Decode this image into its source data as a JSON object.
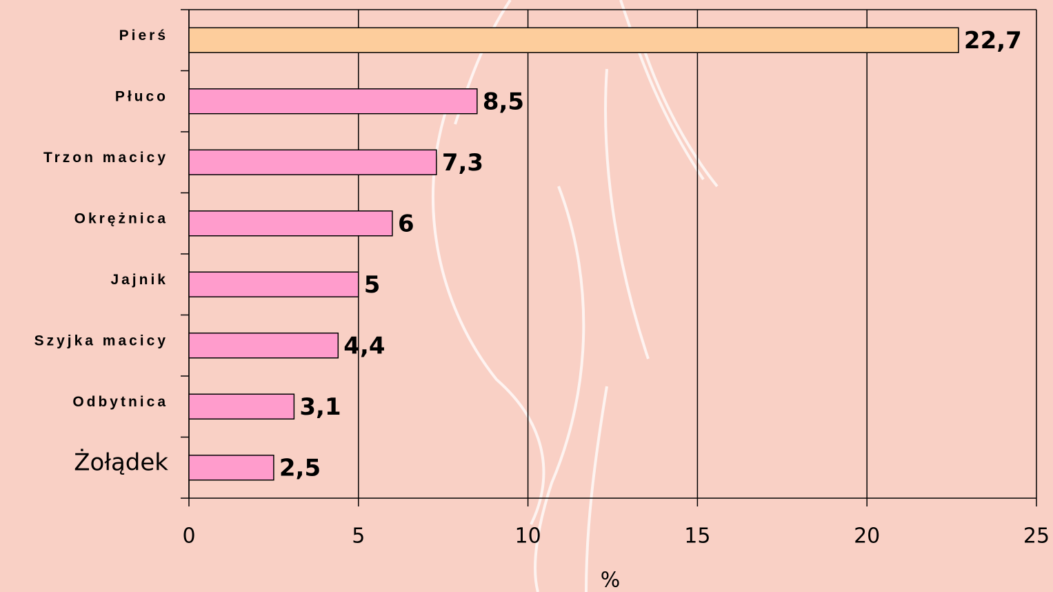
{
  "chart_data": {
    "type": "bar",
    "orientation": "horizontal",
    "categories": [
      "Pierś",
      "Płuco",
      "Trzon macicy",
      "Okrężnica",
      "Jajnik",
      "Szyjka macicy",
      "Odbytnica",
      "Żołądek"
    ],
    "values": [
      22.7,
      8.5,
      7.3,
      6,
      5,
      4.4,
      3.1,
      2.5
    ],
    "value_labels": [
      "22,7",
      "8,5",
      "7,3",
      "6",
      "5",
      "4,4",
      "3,1",
      "2,5"
    ],
    "colors": [
      "#fdcd9c",
      "#ff9ccc",
      "#ff9ccc",
      "#ff9ccc",
      "#ff9ccc",
      "#ff9ccc",
      "#ff9ccc",
      "#ff9ccc"
    ],
    "xlabel": "%",
    "xlim": [
      0,
      25
    ],
    "xticks": [
      0,
      5,
      10,
      15,
      20,
      25
    ],
    "grid": true
  }
}
